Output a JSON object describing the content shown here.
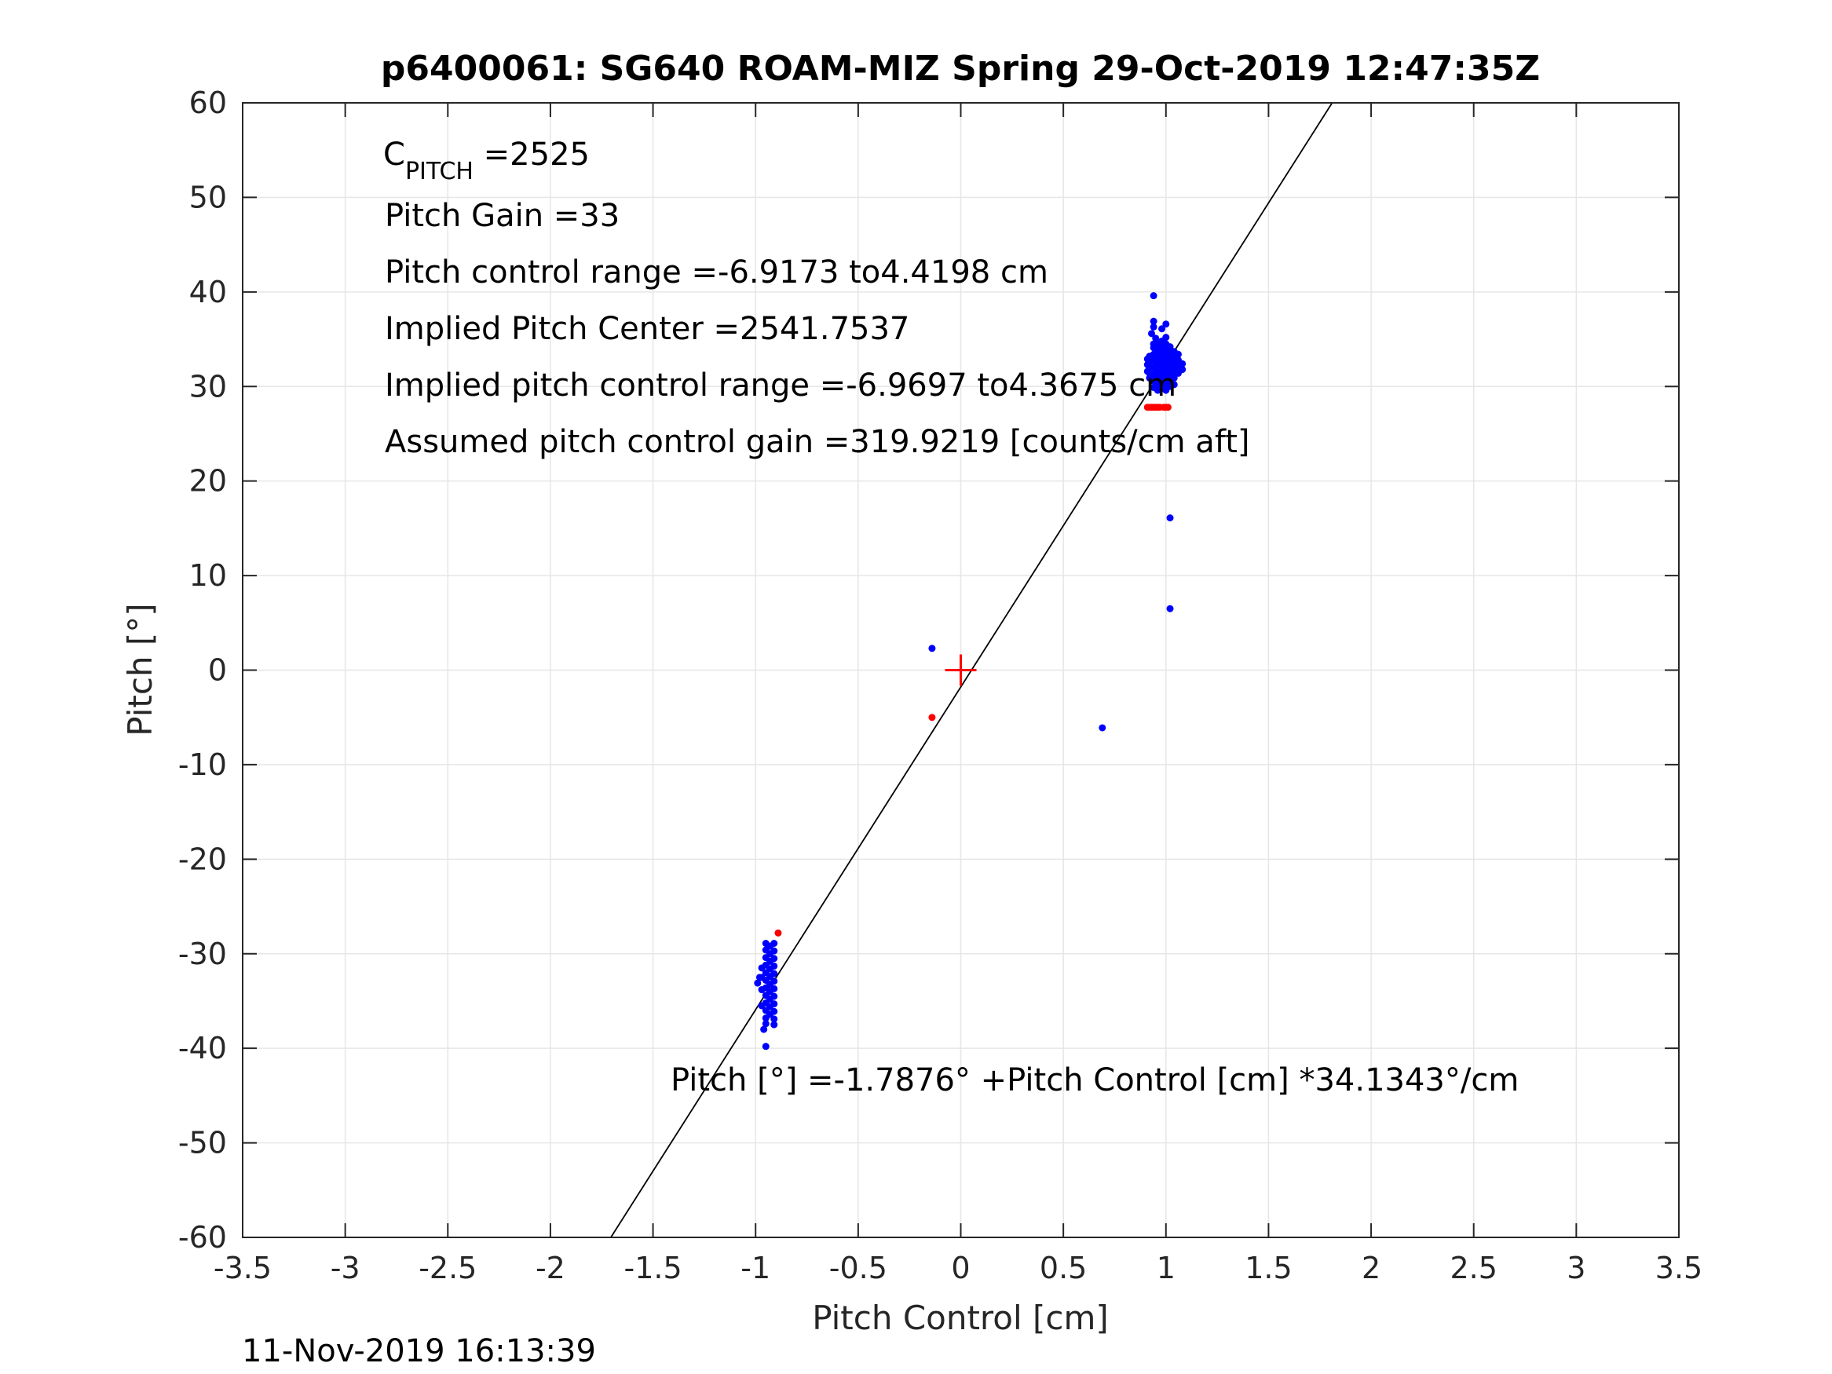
{
  "chart_data": {
    "type": "scatter",
    "title": "p6400061: SG640 ROAM-MIZ Spring 29-Oct-2019 12:47:35Z",
    "xlabel": "Pitch Control [cm]",
    "ylabel": "Pitch [°]",
    "xlim": [
      -3.5,
      3.5
    ],
    "ylim": [
      -60,
      60
    ],
    "xticks": [
      -3.5,
      -3,
      -2.5,
      -2,
      -1.5,
      -1,
      -0.5,
      0,
      0.5,
      1,
      1.5,
      2,
      2.5,
      3,
      3.5
    ],
    "yticks": [
      -60,
      -50,
      -40,
      -30,
      -20,
      -10,
      0,
      10,
      20,
      30,
      40,
      50,
      60
    ],
    "xtick_labels": [
      "-3.5",
      "-3",
      "-2.5",
      "-2",
      "-1.5",
      "-1",
      "-0.5",
      "0",
      "0.5",
      "1",
      "1.5",
      "2",
      "2.5",
      "3",
      "3.5"
    ],
    "ytick_labels": [
      "-60",
      "-50",
      "-40",
      "-30",
      "-20",
      "-10",
      "0",
      "10",
      "20",
      "30",
      "40",
      "50",
      "60"
    ],
    "grid": true,
    "annotations": {
      "c_pitch_main": "C",
      "c_pitch_sub": "PITCH",
      "c_pitch_value": " =2525",
      "pitch_gain": "Pitch Gain =33",
      "pitch_control_range": "Pitch control range =-6.9173 to4.4198 cm",
      "implied_pitch_center": "Implied Pitch Center =2541.7537",
      "implied_range": "Implied pitch control range =-6.9697 to4.3675 cm",
      "assumed_gain": "Assumed pitch control gain =319.9219 [counts/cm aft]",
      "fit_equation": "Pitch [°] =-1.7876° +Pitch Control [cm] *34.1343°/cm"
    },
    "timestamp": "11-Nov-2019 16:13:39",
    "fit_line": {
      "intercept": -1.7876,
      "slope": 34.1343,
      "color": "#000000"
    },
    "center_marker": {
      "x": 0,
      "y": 0,
      "color": "#ff0000"
    },
    "colors": {
      "blue": "#0000ff",
      "red": "#ff0000",
      "grid": "#e6e6e6",
      "axis": "#262626"
    },
    "series": [
      {
        "color": "#0000ff",
        "points": [
          [
            -0.95,
            -28.9
          ],
          [
            -0.95,
            -29.6
          ],
          [
            -0.95,
            -30.4
          ],
          [
            -0.95,
            -31.2
          ],
          [
            -0.95,
            -32.0
          ],
          [
            -0.95,
            -32.8
          ],
          [
            -0.95,
            -33.6
          ],
          [
            -0.95,
            -34.4
          ],
          [
            -0.95,
            -35.2
          ],
          [
            -0.95,
            -36.0
          ],
          [
            -0.95,
            -36.8
          ],
          [
            -0.95,
            -37.4
          ],
          [
            -0.93,
            -29.2
          ],
          [
            -0.93,
            -30.0
          ],
          [
            -0.93,
            -30.8
          ],
          [
            -0.93,
            -31.6
          ],
          [
            -0.93,
            -32.4
          ],
          [
            -0.93,
            -33.2
          ],
          [
            -0.93,
            -34.0
          ],
          [
            -0.93,
            -34.8
          ],
          [
            -0.93,
            -35.6
          ],
          [
            -0.93,
            -36.4
          ],
          [
            -0.91,
            -28.9
          ],
          [
            -0.91,
            -29.7
          ],
          [
            -0.91,
            -30.5
          ],
          [
            -0.91,
            -31.3
          ],
          [
            -0.91,
            -32.1
          ],
          [
            -0.91,
            -32.9
          ],
          [
            -0.91,
            -33.7
          ],
          [
            -0.91,
            -34.5
          ],
          [
            -0.91,
            -35.3
          ],
          [
            -0.91,
            -36.1
          ],
          [
            -0.91,
            -36.9
          ],
          [
            -0.91,
            -37.5
          ],
          [
            -0.97,
            -31.5
          ],
          [
            -0.97,
            -32.5
          ],
          [
            -0.97,
            -33.8
          ],
          [
            -0.97,
            -35.5
          ],
          [
            -0.98,
            -32.5
          ],
          [
            -0.99,
            -33.1
          ],
          [
            -0.96,
            -38.0
          ],
          [
            -0.95,
            -39.8
          ],
          [
            -0.14,
            2.3
          ],
          [
            0.69,
            -6.1
          ],
          [
            1.02,
            16.1
          ],
          [
            1.02,
            6.5
          ],
          [
            0.94,
            39.6
          ],
          [
            0.94,
            36.9
          ],
          [
            0.94,
            36.3
          ],
          [
            0.94,
            34.5
          ],
          [
            0.93,
            35.6
          ],
          [
            0.95,
            35.1
          ],
          [
            0.98,
            36.1
          ],
          [
            1.0,
            36.6
          ],
          [
            0.96,
            33.9
          ],
          [
            0.91,
            32.9
          ],
          [
            0.91,
            32.3
          ],
          [
            0.91,
            31.6
          ],
          [
            0.92,
            30.9
          ],
          [
            0.92,
            31.4
          ],
          [
            0.92,
            32.0
          ],
          [
            0.92,
            32.6
          ],
          [
            0.92,
            33.2
          ],
          [
            0.94,
            29.9
          ],
          [
            0.94,
            30.6
          ],
          [
            0.94,
            31.3
          ],
          [
            0.94,
            32.0
          ],
          [
            0.94,
            32.7
          ],
          [
            0.94,
            33.4
          ],
          [
            0.94,
            34.1
          ],
          [
            0.96,
            29.6
          ],
          [
            0.96,
            30.3
          ],
          [
            0.96,
            31.0
          ],
          [
            0.96,
            31.7
          ],
          [
            0.96,
            32.4
          ],
          [
            0.96,
            33.1
          ],
          [
            0.96,
            33.8
          ],
          [
            0.96,
            34.5
          ],
          [
            0.98,
            29.9
          ],
          [
            0.98,
            30.6
          ],
          [
            0.98,
            31.3
          ],
          [
            0.98,
            32.0
          ],
          [
            0.98,
            32.7
          ],
          [
            0.98,
            33.4
          ],
          [
            0.98,
            34.1
          ],
          [
            0.98,
            34.8
          ],
          [
            1.0,
            29.6
          ],
          [
            1.0,
            30.3
          ],
          [
            1.0,
            31.0
          ],
          [
            1.0,
            31.7
          ],
          [
            1.0,
            32.4
          ],
          [
            1.0,
            33.1
          ],
          [
            1.0,
            33.8
          ],
          [
            1.0,
            34.5
          ],
          [
            1.0,
            35.2
          ],
          [
            1.02,
            30.0
          ],
          [
            1.02,
            30.7
          ],
          [
            1.02,
            31.4
          ],
          [
            1.02,
            32.1
          ],
          [
            1.02,
            32.8
          ],
          [
            1.02,
            33.5
          ],
          [
            1.02,
            34.2
          ],
          [
            1.04,
            30.2
          ],
          [
            1.04,
            30.9
          ],
          [
            1.04,
            31.6
          ],
          [
            1.04,
            32.3
          ],
          [
            1.04,
            33.0
          ],
          [
            1.04,
            33.7
          ],
          [
            1.06,
            31.4
          ],
          [
            1.06,
            32.1
          ],
          [
            1.06,
            32.8
          ],
          [
            1.06,
            33.4
          ],
          [
            1.08,
            31.8
          ],
          [
            1.08,
            32.4
          ]
        ]
      },
      {
        "color": "#ff0000",
        "points": [
          [
            -0.89,
            -27.8
          ],
          [
            -0.14,
            -5.0
          ],
          [
            0.91,
            27.8
          ],
          [
            0.92,
            27.8
          ],
          [
            0.93,
            27.8
          ],
          [
            0.94,
            27.8
          ],
          [
            0.95,
            27.8
          ],
          [
            0.96,
            27.8
          ],
          [
            0.97,
            27.8
          ],
          [
            0.99,
            27.8
          ],
          [
            1.0,
            27.8
          ],
          [
            1.01,
            27.8
          ]
        ]
      }
    ]
  }
}
